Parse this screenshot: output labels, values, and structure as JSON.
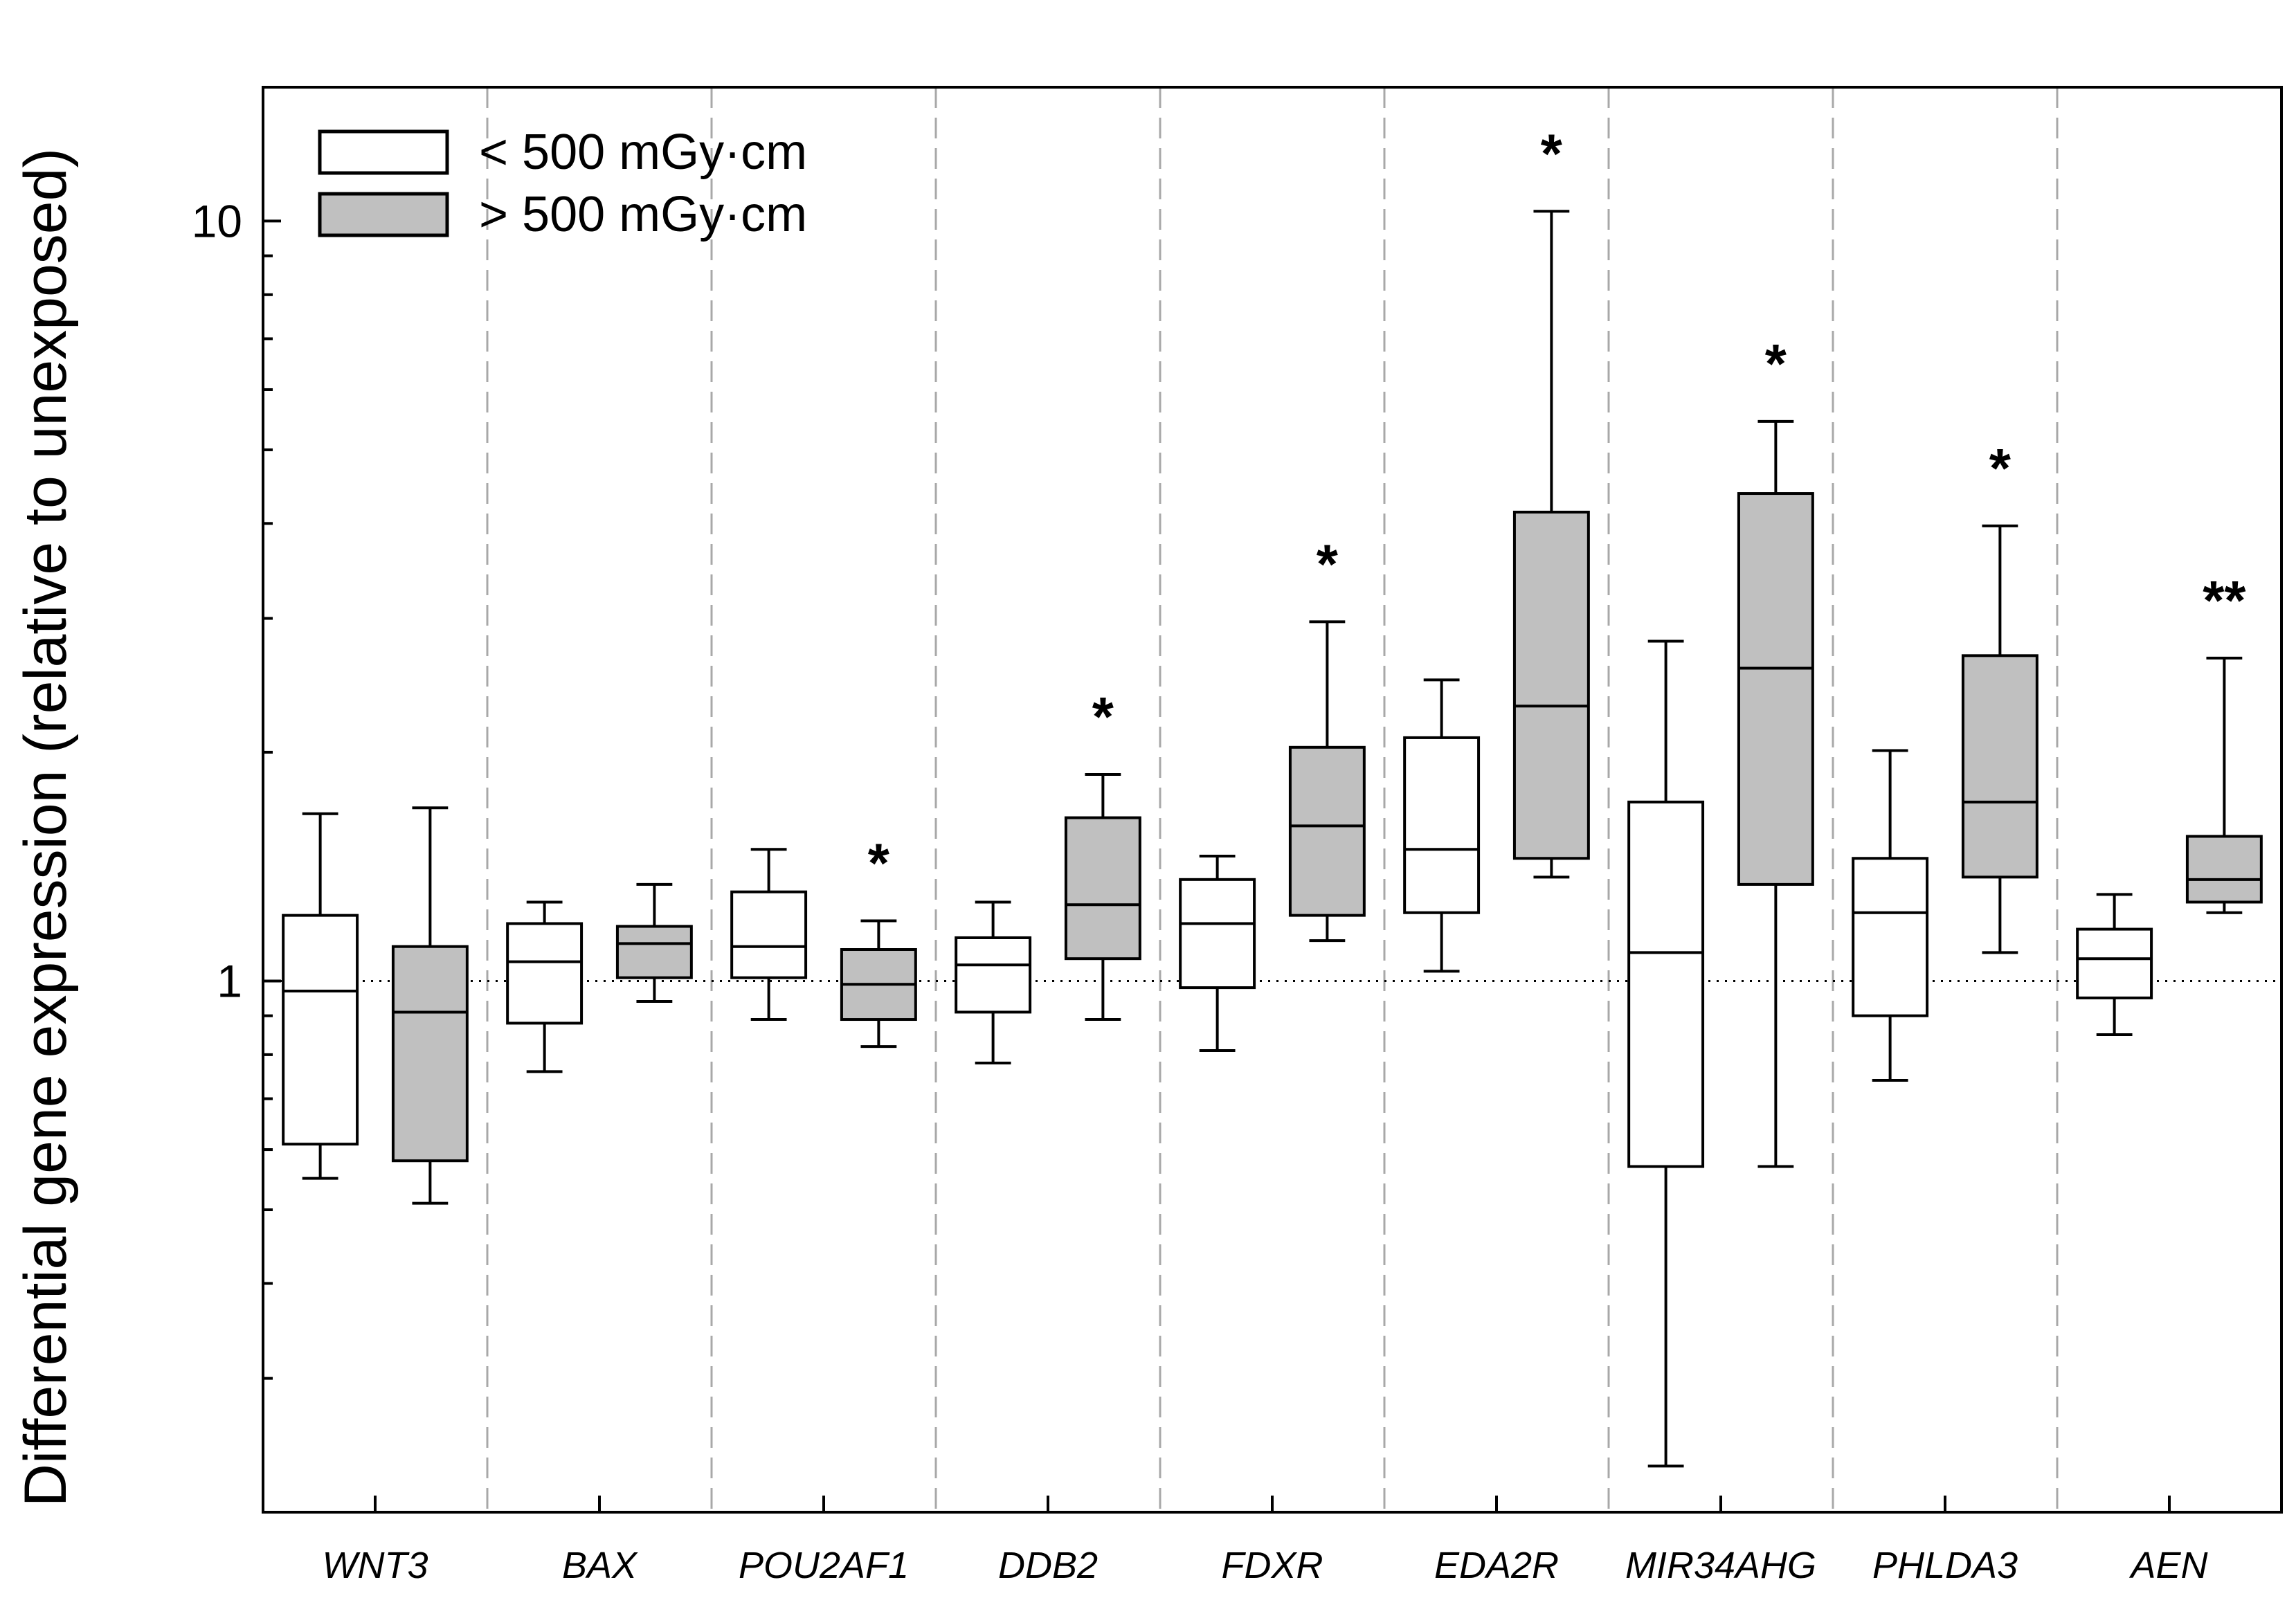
{
  "chart_data": {
    "type": "box",
    "title": "",
    "xlabel": "",
    "ylabel": "Differential gene expression (relative to unexposed)",
    "yscale": "log",
    "ylim": [
      0.2,
      15
    ],
    "yticks": [
      {
        "value": 1,
        "label": "1"
      },
      {
        "value": 10,
        "label": "10"
      }
    ],
    "minor_ticks": [
      0.3,
      0.4,
      0.5,
      0.6,
      0.7,
      0.8,
      0.9,
      2,
      3,
      4,
      5,
      6,
      7,
      8,
      9
    ],
    "reference_line": 1,
    "legend_position": "top-left",
    "series": [
      {
        "name": "< 500 mGy·cm",
        "fill": "#ffffff"
      },
      {
        "name": "> 500 mGy·cm",
        "fill": "#c0c0c0"
      }
    ],
    "categories": [
      "WNT3",
      "BAX",
      "POU2AF1",
      "DDB2",
      "FDXR",
      "EDA2R",
      "MIR34AHG",
      "PHLDA3",
      "AEN"
    ],
    "boxes": [
      {
        "category": "WNT3",
        "series": 0,
        "whisker_low": 0.55,
        "q1": 0.61,
        "median": 0.97,
        "q3": 1.22,
        "whisker_high": 1.66
      },
      {
        "category": "WNT3",
        "series": 1,
        "whisker_low": 0.51,
        "q1": 0.58,
        "median": 0.91,
        "q3": 1.11,
        "whisker_high": 1.69
      },
      {
        "category": "BAX",
        "series": 0,
        "whisker_low": 0.76,
        "q1": 0.88,
        "median": 1.06,
        "q3": 1.19,
        "whisker_high": 1.27
      },
      {
        "category": "BAX",
        "series": 1,
        "whisker_low": 0.94,
        "q1": 1.01,
        "median": 1.12,
        "q3": 1.18,
        "whisker_high": 1.34
      },
      {
        "category": "POU2AF1",
        "series": 0,
        "whisker_low": 0.89,
        "q1": 1.01,
        "median": 1.11,
        "q3": 1.31,
        "whisker_high": 1.49
      },
      {
        "category": "POU2AF1",
        "series": 1,
        "whisker_low": 0.82,
        "q1": 0.89,
        "median": 0.99,
        "q3": 1.1,
        "whisker_high": 1.2
      },
      {
        "category": "DDB2",
        "series": 0,
        "whisker_low": 0.78,
        "q1": 0.91,
        "median": 1.05,
        "q3": 1.14,
        "whisker_high": 1.27
      },
      {
        "category": "DDB2",
        "series": 1,
        "whisker_low": 0.89,
        "q1": 1.07,
        "median": 1.26,
        "q3": 1.64,
        "whisker_high": 1.87
      },
      {
        "category": "FDXR",
        "series": 0,
        "whisker_low": 0.81,
        "q1": 0.98,
        "median": 1.19,
        "q3": 1.36,
        "whisker_high": 1.46
      },
      {
        "category": "FDXR",
        "series": 1,
        "whisker_low": 1.13,
        "q1": 1.22,
        "median": 1.6,
        "q3": 2.03,
        "whisker_high": 2.97
      },
      {
        "category": "EDA2R",
        "series": 0,
        "whisker_low": 1.03,
        "q1": 1.23,
        "median": 1.49,
        "q3": 2.09,
        "whisker_high": 2.49
      },
      {
        "category": "EDA2R",
        "series": 1,
        "whisker_low": 1.37,
        "q1": 1.45,
        "median": 2.3,
        "q3": 4.14,
        "whisker_high": 10.3
      },
      {
        "category": "MIR34AHG",
        "series": 0,
        "whisker_low": 0.23,
        "q1": 0.57,
        "median": 1.09,
        "q3": 1.72,
        "whisker_high": 2.8
      },
      {
        "category": "MIR34AHG",
        "series": 1,
        "whisker_low": 0.57,
        "q1": 1.34,
        "median": 2.58,
        "q3": 4.38,
        "whisker_high": 5.45
      },
      {
        "category": "PHLDA3",
        "series": 0,
        "whisker_low": 0.74,
        "q1": 0.9,
        "median": 1.23,
        "q3": 1.45,
        "whisker_high": 2.01
      },
      {
        "category": "PHLDA3",
        "series": 1,
        "whisker_low": 1.09,
        "q1": 1.37,
        "median": 1.72,
        "q3": 2.68,
        "whisker_high": 3.97
      },
      {
        "category": "AEN",
        "series": 0,
        "whisker_low": 0.85,
        "q1": 0.95,
        "median": 1.07,
        "q3": 1.17,
        "whisker_high": 1.3
      },
      {
        "category": "AEN",
        "series": 1,
        "whisker_low": 1.23,
        "q1": 1.27,
        "median": 1.36,
        "q3": 1.55,
        "whisker_high": 2.66
      }
    ],
    "significance": [
      {
        "category": "POU2AF1",
        "series": 1,
        "label": "*"
      },
      {
        "category": "DDB2",
        "series": 1,
        "label": "*"
      },
      {
        "category": "FDXR",
        "series": 1,
        "label": "*"
      },
      {
        "category": "EDA2R",
        "series": 1,
        "label": "*"
      },
      {
        "category": "MIR34AHG",
        "series": 1,
        "label": "*"
      },
      {
        "category": "PHLDA3",
        "series": 1,
        "label": "*"
      },
      {
        "category": "AEN",
        "series": 1,
        "label": "**"
      }
    ]
  }
}
